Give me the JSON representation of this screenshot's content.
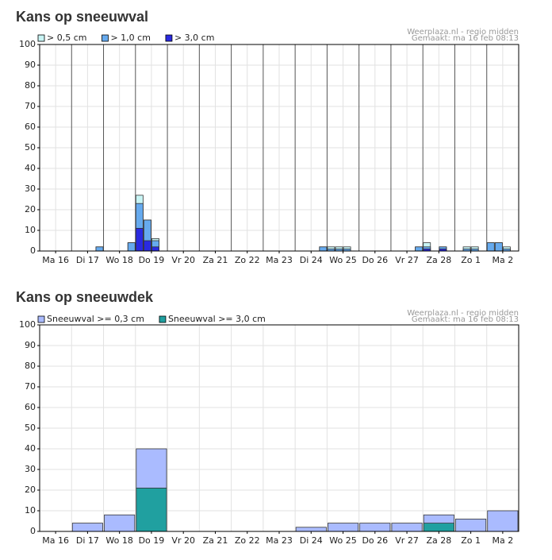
{
  "chart_data": [
    {
      "type": "bar",
      "title": "Kans op sneeuwval",
      "source": "Weerplaza.nl - regio midden",
      "created": "Gemaakt: ma 16 feb 08:13",
      "categories": [
        "Ma 16",
        "Di 17",
        "Wo 18",
        "Do 19",
        "Vr 20",
        "Za 21",
        "Zo 22",
        "Ma 23",
        "Di 24",
        "Wo 25",
        "Do 26",
        "Vr 27",
        "Za 28",
        "Zo 1",
        "Ma 2"
      ],
      "series": [
        {
          "name": "> 0,5 cm",
          "color": "#c8f4f4",
          "values": [
            [
              0,
              0,
              0,
              0
            ],
            [
              0,
              0,
              0,
              2
            ],
            [
              0,
              0,
              0,
              4
            ],
            [
              27,
              15,
              6,
              0
            ],
            [
              0,
              0,
              0,
              0
            ],
            [
              0,
              0,
              0,
              0
            ],
            [
              0,
              0,
              0,
              0
            ],
            [
              0,
              0,
              0,
              0
            ],
            [
              0,
              0,
              0,
              2
            ],
            [
              2,
              2,
              2,
              0
            ],
            [
              0,
              0,
              0,
              0
            ],
            [
              0,
              0,
              0,
              2
            ],
            [
              4,
              0,
              2,
              0
            ],
            [
              0,
              2,
              2,
              0
            ],
            [
              4,
              4,
              2,
              0
            ]
          ]
        },
        {
          "name": "> 1,0 cm",
          "color": "#66aaee",
          "values": [
            [
              0,
              0,
              0,
              0
            ],
            [
              0,
              0,
              0,
              2
            ],
            [
              0,
              0,
              0,
              4
            ],
            [
              23,
              15,
              5,
              0
            ],
            [
              0,
              0,
              0,
              0
            ],
            [
              0,
              0,
              0,
              0
            ],
            [
              0,
              0,
              0,
              0
            ],
            [
              0,
              0,
              0,
              0
            ],
            [
              0,
              0,
              0,
              2
            ],
            [
              1,
              1,
              1,
              0
            ],
            [
              0,
              0,
              0,
              0
            ],
            [
              0,
              0,
              0,
              2
            ],
            [
              2,
              0,
              2,
              0
            ],
            [
              0,
              1,
              1,
              0
            ],
            [
              4,
              4,
              1,
              0
            ]
          ]
        },
        {
          "name": "> 3,0 cm",
          "color": "#2a2ae0",
          "values": [
            [
              0,
              0,
              0,
              0
            ],
            [
              0,
              0,
              0,
              0
            ],
            [
              0,
              0,
              0,
              0
            ],
            [
              11,
              5,
              2,
              0
            ],
            [
              0,
              0,
              0,
              0
            ],
            [
              0,
              0,
              0,
              0
            ],
            [
              0,
              0,
              0,
              0
            ],
            [
              0,
              0,
              0,
              0
            ],
            [
              0,
              0,
              0,
              0
            ],
            [
              0,
              0,
              0,
              0
            ],
            [
              0,
              0,
              0,
              0
            ],
            [
              0,
              0,
              0,
              0
            ],
            [
              1,
              0,
              1,
              0
            ],
            [
              0,
              0,
              0,
              0
            ],
            [
              0,
              0,
              0,
              0
            ]
          ]
        }
      ],
      "ylim": [
        0,
        100
      ],
      "yticks": [
        0,
        10,
        20,
        30,
        40,
        50,
        60,
        70,
        80,
        90,
        100
      ],
      "grid": true
    },
    {
      "type": "bar",
      "title": "Kans op sneeuwdek",
      "source": "Weerplaza.nl - regio midden",
      "created": "Gemaakt: ma 16 feb 08:13",
      "categories": [
        "Ma 16",
        "Di 17",
        "Wo 18",
        "Do 19",
        "Vr 20",
        "Za 21",
        "Zo 22",
        "Ma 23",
        "Di 24",
        "Wo 25",
        "Do 26",
        "Vr 27",
        "Za 28",
        "Zo 1",
        "Ma 2"
      ],
      "series": [
        {
          "name": "Sneeuwval >= 0,3 cm",
          "color": "#aabbff",
          "values": [
            0,
            4,
            8,
            40,
            0,
            0,
            0,
            0,
            2,
            4,
            4,
            4,
            8,
            6,
            10
          ]
        },
        {
          "name": "Sneeuwval >= 3,0 cm",
          "color": "#20a0a0",
          "values": [
            0,
            0,
            0,
            21,
            0,
            0,
            0,
            0,
            0,
            0,
            0,
            0,
            4,
            0,
            0
          ]
        }
      ],
      "ylim": [
        0,
        100
      ],
      "yticks": [
        0,
        10,
        20,
        30,
        40,
        50,
        60,
        70,
        80,
        90,
        100
      ],
      "grid": true
    }
  ]
}
